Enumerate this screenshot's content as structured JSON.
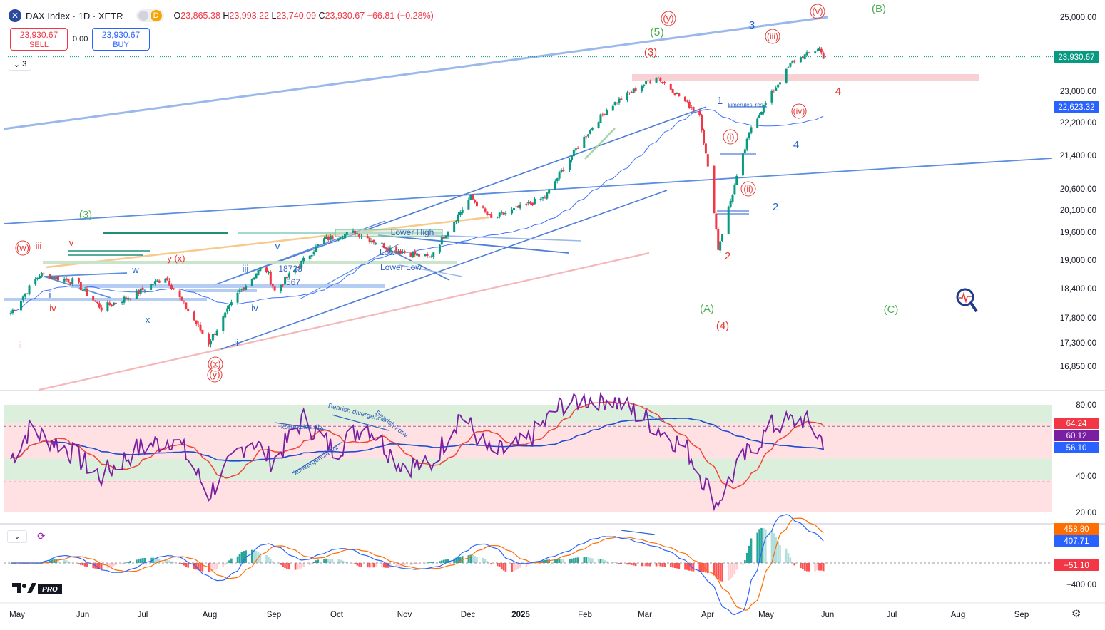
{
  "header": {
    "symbol_title": "DAX Index · 1D · XETR",
    "source_badge": "D",
    "ohlc": {
      "open_label": "O",
      "open": "23,865.38",
      "high_label": "H",
      "high": "23,993.22",
      "low_label": "L",
      "low": "23,740.09",
      "close_label": "C",
      "close": "23,930.67",
      "change": "−66.81 (−0.28%)"
    }
  },
  "trading": {
    "sell_price": "23,930.67",
    "sell_label": "SELL",
    "spread": "0.00",
    "buy_price": "23,930.67",
    "buy_label": "BUY"
  },
  "indicators_toggle": "3",
  "brand": {
    "text": "PRO"
  },
  "colors": {
    "up": "#089981",
    "down": "#f23645",
    "grid": "#f0f3fa",
    "wave_red": "#e53935",
    "wave_blue": "#1e64c8",
    "wave_green": "#4caf50",
    "rsi": "#7b1fa2",
    "rsi_ma": "#f44336",
    "rsi_slow": "#1e4bd2",
    "macd": "#2962ff",
    "signal": "#ff6d00"
  },
  "chart_data": [
    {
      "type": "candlestick",
      "title": "DAX Index · 1D · XETR",
      "x_ticks": [
        "May",
        "Jun",
        "Jul",
        "Aug",
        "Sep",
        "Oct",
        "Nov",
        "Dec",
        "2025",
        "Feb",
        "Mar",
        "Apr",
        "May",
        "Jun",
        "Jul",
        "Aug",
        "Sep"
      ],
      "y_ticks": [
        "25,000.00",
        "23,000.00",
        "22,200.00",
        "21,400.00",
        "20,600.00",
        "20,100.00",
        "19,600.00",
        "19,000.00",
        "18,400.00",
        "17,800.00",
        "17,300.00",
        "16,850.00"
      ],
      "price_tags": [
        {
          "value": "23,930.67",
          "color": "#089981"
        },
        {
          "value": "22,623.32",
          "color": "#2962ff"
        }
      ],
      "last_close": 23930.67,
      "series_path": [
        [
          "2024-05-01",
          17900
        ],
        [
          "2024-05-15",
          18700
        ],
        [
          "2024-06-01",
          18550
        ],
        [
          "2024-06-14",
          18000
        ],
        [
          "2024-07-01",
          18300
        ],
        [
          "2024-07-15",
          18650
        ],
        [
          "2024-08-05",
          17300
        ],
        [
          "2024-08-20",
          18350
        ],
        [
          "2024-09-01",
          18900
        ],
        [
          "2024-09-06",
          18350
        ],
        [
          "2024-09-30",
          19450
        ],
        [
          "2024-10-15",
          19600
        ],
        [
          "2024-11-01",
          19250
        ],
        [
          "2024-11-20",
          19050
        ],
        [
          "2024-12-10",
          20400
        ],
        [
          "2024-12-20",
          19900
        ],
        [
          "2025-01-15",
          20400
        ],
        [
          "2025-02-01",
          21700
        ],
        [
          "2025-02-15",
          22600
        ],
        [
          "2025-03-10",
          23400
        ],
        [
          "2025-03-31",
          22400
        ],
        [
          "2025-04-07",
          20100
        ],
        [
          "2025-04-09",
          19250
        ],
        [
          "2025-04-25",
          22100
        ],
        [
          "2025-05-15",
          23800
        ],
        [
          "2025-05-28",
          24150
        ],
        [
          "2025-05-30",
          23930
        ]
      ],
      "wave_labels": [
        {
          "text": "(3)",
          "color": "green"
        },
        {
          "text": "(5)",
          "color": "green"
        },
        {
          "text": "(A)",
          "color": "green"
        },
        {
          "text": "(B)",
          "color": "green"
        },
        {
          "text": "(C)",
          "color": "green"
        },
        {
          "text": "(3)",
          "color": "red"
        },
        {
          "text": "(4)",
          "color": "red"
        },
        {
          "text": "(w)",
          "color": "red"
        },
        {
          "text": "(x)",
          "color": "red"
        },
        {
          "text": "(y)",
          "color": "red"
        },
        {
          "text": "y (x)",
          "color": "red"
        },
        {
          "text": "(y)",
          "color": "red"
        },
        {
          "text": "(v)",
          "color": "red"
        },
        {
          "text": "(iii)",
          "color": "red"
        },
        {
          "text": "(iv)",
          "color": "red"
        },
        {
          "text": "(i)",
          "color": "red"
        },
        {
          "text": "(ii)",
          "color": "red"
        },
        {
          "text": "2",
          "color": "red"
        },
        {
          "text": "4",
          "color": "red"
        },
        {
          "text": "ii",
          "color": "red"
        },
        {
          "text": "iii",
          "color": "red"
        },
        {
          "text": "iv",
          "color": "red"
        },
        {
          "text": "v",
          "color": "red"
        },
        {
          "text": "1",
          "color": "blue"
        },
        {
          "text": "2",
          "color": "blue"
        },
        {
          "text": "3",
          "color": "blue"
        },
        {
          "text": "4",
          "color": "blue"
        },
        {
          "text": "i",
          "color": "blue"
        },
        {
          "text": "ii",
          "color": "blue"
        },
        {
          "text": "iii",
          "color": "blue"
        },
        {
          "text": "iv",
          "color": "blue"
        },
        {
          "text": "v",
          "color": "blue"
        },
        {
          "text": "w",
          "color": "blue"
        },
        {
          "text": "x",
          "color": "blue"
        }
      ],
      "annotations": [
        "Lower High",
        "Low",
        "Lower Low",
        "18728",
        "567",
        "kimerülési rés"
      ]
    },
    {
      "type": "line",
      "name": "RSI",
      "y_ticks": [
        "80.00",
        "40.00",
        "20.00"
      ],
      "value_tags": [
        {
          "value": "64.24",
          "color": "#f23645"
        },
        {
          "value": "60.12",
          "color": "#7b1fa2"
        },
        {
          "value": "56.10",
          "color": "#2962ff"
        }
      ],
      "annotations": [
        "korrekciós div.",
        "Bearish divergencia",
        "Bearish konv.",
        "konvergencia sor"
      ],
      "rsi_path": [
        [
          "2024-05-01",
          50
        ],
        [
          "2024-05-10",
          66
        ],
        [
          "2024-05-25",
          58
        ],
        [
          "2024-06-14",
          40
        ],
        [
          "2024-07-01",
          55
        ],
        [
          "2024-07-20",
          62
        ],
        [
          "2024-08-05",
          30
        ],
        [
          "2024-08-25",
          62
        ],
        [
          "2024-09-05",
          48
        ],
        [
          "2024-09-20",
          72
        ],
        [
          "2024-10-05",
          54
        ],
        [
          "2024-10-20",
          70
        ],
        [
          "2024-11-05",
          48
        ],
        [
          "2024-11-20",
          45
        ],
        [
          "2024-12-05",
          75
        ],
        [
          "2024-12-20",
          52
        ],
        [
          "2025-01-05",
          58
        ],
        [
          "2025-01-25",
          82
        ],
        [
          "2025-02-15",
          84
        ],
        [
          "2025-03-05",
          72
        ],
        [
          "2025-03-25",
          55
        ],
        [
          "2025-04-08",
          25
        ],
        [
          "2025-04-20",
          48
        ],
        [
          "2025-05-05",
          68
        ],
        [
          "2025-05-20",
          72
        ],
        [
          "2025-05-30",
          60
        ]
      ]
    },
    {
      "type": "histogram",
      "name": "MACD",
      "y_ticks": [
        "−400.00"
      ],
      "value_tags": [
        {
          "value": "458.80",
          "color": "#ff6d00"
        },
        {
          "value": "407.71",
          "color": "#2962ff"
        },
        {
          "value": "−51.10",
          "color": "#f23645"
        }
      ]
    }
  ]
}
